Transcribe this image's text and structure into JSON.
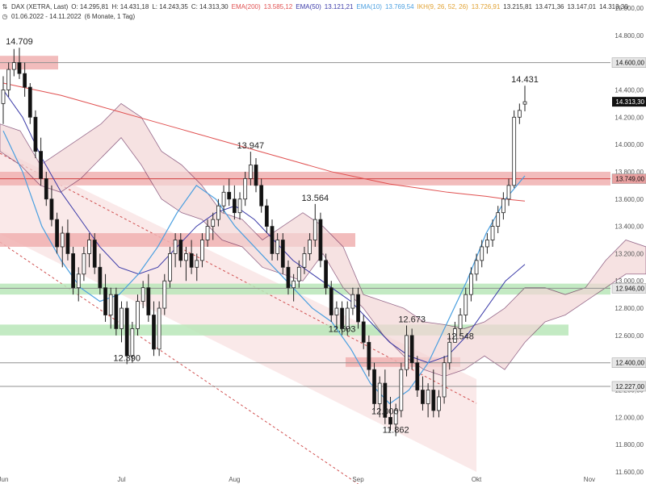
{
  "header": {
    "symbol_icon": "chart-icon",
    "symbol": "DAX (XETRA, Last)",
    "ohlc": {
      "open": "O: 14.295,81",
      "high": "H: 14.431,18",
      "low": "L: 14.243,35",
      "close": "C: 14.313,30"
    },
    "indicators": [
      {
        "name": "EMA(200)",
        "value": "13.585,12",
        "color": "#e05050"
      },
      {
        "name": "EMA(50)",
        "value": "13.121,21",
        "color": "#3a3aa8"
      },
      {
        "name": "EMA(10)",
        "value": "13.769,54",
        "color": "#4a9fe0"
      },
      {
        "name": "IKH(9, 26, 52, 26)",
        "value": "13.726,91",
        "color": "#e0a030"
      }
    ],
    "ikh_extra": [
      "13.215,81",
      "13.471,36",
      "13.147,01",
      "14.313,30"
    ],
    "clock_icon": "clock-icon",
    "range": "01.06.2022 - 14.11.2022",
    "range_note": "(6 Monate, 1 Tag)"
  },
  "chart_data": {
    "type": "candlestick",
    "ylim": [
      11600,
      15000
    ],
    "y_ticks": [
      "15.000,00",
      "14.800,00",
      "14.600,00",
      "14.400,00",
      "14.200,00",
      "14.000,00",
      "13.800,00",
      "13.600,00",
      "13.400,00",
      "13.200,00",
      "13.000,00",
      "12.800,00",
      "12.600,00",
      "12.400,00",
      "12.200,00",
      "12.000,00",
      "11.800,00",
      "11.600,00"
    ],
    "x_ticks": [
      {
        "label": "Jun",
        "index": 0
      },
      {
        "label": "Jul",
        "index": 22
      },
      {
        "label": "Aug",
        "index": 43
      },
      {
        "label": "Sep",
        "index": 66
      },
      {
        "label": "Okt",
        "index": 88
      },
      {
        "label": "Nov",
        "index": 109
      }
    ],
    "candles": [
      [
        14300,
        14500,
        14150,
        14400
      ],
      [
        14400,
        14600,
        14350,
        14550
      ],
      [
        14550,
        14700,
        14500,
        14600
      ],
      [
        14600,
        14709,
        14480,
        14520
      ],
      [
        14520,
        14600,
        14350,
        14420
      ],
      [
        14420,
        14450,
        14150,
        14200
      ],
      [
        14200,
        14250,
        13900,
        13950
      ],
      [
        13950,
        14050,
        13700,
        13750
      ],
      [
        13750,
        13800,
        13550,
        13600
      ],
      [
        13600,
        13700,
        13400,
        13450
      ],
      [
        13450,
        13500,
        13200,
        13250
      ],
      [
        13250,
        13400,
        13100,
        13350
      ],
      [
        13350,
        13450,
        13150,
        13200
      ],
      [
        13200,
        13250,
        12900,
        12950
      ],
      [
        12950,
        13100,
        12850,
        13050
      ],
      [
        13050,
        13250,
        13000,
        13200
      ],
      [
        13200,
        13350,
        13100,
        13300
      ],
      [
        13300,
        13350,
        13050,
        13100
      ],
      [
        13100,
        13200,
        12900,
        12950
      ],
      [
        12950,
        13050,
        12700,
        12750
      ],
      [
        12750,
        12950,
        12650,
        12900
      ],
      [
        12900,
        12950,
        12600,
        12650
      ],
      [
        12650,
        12850,
        12550,
        12800
      ],
      [
        12800,
        12850,
        12390,
        12450
      ],
      [
        12450,
        12700,
        12400,
        12650
      ],
      [
        12650,
        12900,
        12600,
        12850
      ],
      [
        12850,
        13000,
        12800,
        12950
      ],
      [
        12950,
        13050,
        12700,
        12750
      ],
      [
        12750,
        12850,
        12450,
        12500
      ],
      [
        12500,
        12850,
        12450,
        12800
      ],
      [
        12800,
        13050,
        12750,
        13000
      ],
      [
        13000,
        13250,
        12950,
        13200
      ],
      [
        13200,
        13350,
        13100,
        13300
      ],
      [
        13300,
        13350,
        13100,
        13150
      ],
      [
        13150,
        13250,
        13000,
        13200
      ],
      [
        13200,
        13300,
        13050,
        13100
      ],
      [
        13100,
        13200,
        13000,
        13150
      ],
      [
        13150,
        13350,
        13100,
        13300
      ],
      [
        13300,
        13450,
        13250,
        13400
      ],
      [
        13400,
        13500,
        13300,
        13450
      ],
      [
        13450,
        13600,
        13400,
        13550
      ],
      [
        13550,
        13700,
        13500,
        13650
      ],
      [
        13650,
        13750,
        13550,
        13600
      ],
      [
        13600,
        13700,
        13450,
        13500
      ],
      [
        13500,
        13650,
        13450,
        13600
      ],
      [
        13600,
        13800,
        13550,
        13750
      ],
      [
        13750,
        13947,
        13700,
        13850
      ],
      [
        13850,
        13900,
        13650,
        13700
      ],
      [
        13700,
        13750,
        13500,
        13550
      ],
      [
        13550,
        13600,
        13350,
        13400
      ],
      [
        13400,
        13450,
        13150,
        13200
      ],
      [
        13200,
        13350,
        13150,
        13300
      ],
      [
        13300,
        13350,
        13050,
        13100
      ],
      [
        13100,
        13150,
        12900,
        12950
      ],
      [
        12950,
        13050,
        12850,
        13000
      ],
      [
        13000,
        13150,
        12950,
        13100
      ],
      [
        13100,
        13250,
        13050,
        13200
      ],
      [
        13200,
        13350,
        13150,
        13300
      ],
      [
        13300,
        13564,
        13250,
        13450
      ],
      [
        13450,
        13500,
        13100,
        13150
      ],
      [
        13150,
        13200,
        12900,
        12950
      ],
      [
        12950,
        13000,
        12700,
        12750
      ],
      [
        12750,
        12850,
        12650,
        12800
      ],
      [
        12800,
        12850,
        12603,
        12650
      ],
      [
        12650,
        12850,
        12600,
        12800
      ],
      [
        12800,
        12950,
        12750,
        12900
      ],
      [
        12900,
        12950,
        12650,
        12700
      ],
      [
        12700,
        12750,
        12500,
        12550
      ],
      [
        12550,
        12600,
        12300,
        12350
      ],
      [
        12350,
        12400,
        12050,
        12100
      ],
      [
        12100,
        12300,
        12000,
        12250
      ],
      [
        12250,
        12350,
        11950,
        12000
      ],
      [
        12000,
        12150,
        11900,
        11950
      ],
      [
        11950,
        12100,
        11862,
        12050
      ],
      [
        12050,
        12400,
        12000,
        12350
      ],
      [
        12350,
        12673,
        12300,
        12600
      ],
      [
        12600,
        12650,
        12350,
        12400
      ],
      [
        12400,
        12450,
        12150,
        12200
      ],
      [
        12200,
        12300,
        12050,
        12100
      ],
      [
        12100,
        12250,
        12000,
        12200
      ],
      [
        12200,
        12350,
        12000,
        12050
      ],
      [
        12050,
        12200,
        12000,
        12150
      ],
      [
        12150,
        12450,
        12100,
        12400
      ],
      [
        12400,
        12600,
        12350,
        12550
      ],
      [
        12550,
        12700,
        12548,
        12650
      ],
      [
        12650,
        12800,
        12600,
        12750
      ],
      [
        12750,
        12950,
        12700,
        12900
      ],
      [
        12900,
        13100,
        12850,
        13050
      ],
      [
        13050,
        13200,
        13000,
        13150
      ],
      [
        13150,
        13300,
        13100,
        13250
      ],
      [
        13250,
        13350,
        13200,
        13300
      ],
      [
        13300,
        13450,
        13250,
        13400
      ],
      [
        13400,
        13550,
        13350,
        13500
      ],
      [
        13500,
        13650,
        13450,
        13600
      ],
      [
        13600,
        13750,
        13550,
        13700
      ],
      [
        13700,
        14250,
        13680,
        14200
      ],
      [
        14200,
        14300,
        14150,
        14250
      ],
      [
        14295.81,
        14431.18,
        14243.35,
        14313.3
      ]
    ],
    "overlays": {
      "ema200": [
        14450,
        14420,
        14390,
        14360,
        14320,
        14280,
        14240,
        14200,
        14160,
        14120,
        14080,
        14040,
        14000,
        13960,
        13920,
        13880,
        13840,
        13800,
        13770,
        13740,
        13710,
        13690,
        13670,
        13650,
        13635,
        13620,
        13600,
        13585
      ],
      "ema50": [
        14400,
        14200,
        13900,
        13650,
        13450,
        13250,
        13100,
        13050,
        13100,
        13250,
        13400,
        13500,
        13550,
        13450,
        13300,
        13150,
        13050,
        12950,
        12850,
        12700,
        12550,
        12450,
        12400,
        12450,
        12600,
        12800,
        13000,
        13121
      ],
      "ema10": [
        14100,
        13800,
        13400,
        13150,
        12950,
        12850,
        12900,
        13050,
        13250,
        13500,
        13700,
        13600,
        13400,
        13250,
        13100,
        12950,
        12800,
        12700,
        12500,
        12250,
        12100,
        12200,
        12400,
        12700,
        13000,
        13350,
        13600,
        13770
      ]
    },
    "levels": [
      {
        "label": "14.600,00",
        "value": 14600,
        "style": "gray"
      },
      {
        "label": "13.749,00",
        "value": 13749,
        "style": "red"
      },
      {
        "label": "12.946,00",
        "value": 12946,
        "style": "gray"
      },
      {
        "label": "12.400,00",
        "value": 12400,
        "style": "gray"
      },
      {
        "label": "12.227,00",
        "value": 12227,
        "style": "gray"
      }
    ],
    "zones": [
      {
        "kind": "resistance",
        "from": 14550,
        "to": 14650
      },
      {
        "kind": "resistance",
        "from": 13700,
        "to": 13800
      },
      {
        "kind": "resistance",
        "from": 13250,
        "to": 13350
      },
      {
        "kind": "support",
        "from": 12900,
        "to": 12980
      },
      {
        "kind": "support",
        "from": 12600,
        "to": 12680
      },
      {
        "kind": "resistance",
        "from": 12370,
        "to": 12440
      }
    ],
    "current_price_label": "14.313,30",
    "annotations": [
      {
        "text": "14.709",
        "value": 14709,
        "index": 3
      },
      {
        "text": "13.947",
        "value": 13947,
        "index": 46
      },
      {
        "text": "13.564",
        "value": 13564,
        "index": 58
      },
      {
        "text": "12.603",
        "value": 12603,
        "index": 63
      },
      {
        "text": "12.673",
        "value": 12673,
        "index": 76
      },
      {
        "text": "12.390",
        "value": 12390,
        "index": 23
      },
      {
        "text": "12.548",
        "value": 12548,
        "index": 85
      },
      {
        "text": "12.000",
        "value": 12000,
        "index": 71
      },
      {
        "text": "11.862",
        "value": 11862,
        "index": 73
      },
      {
        "text": "14.431",
        "value": 14431,
        "index": 97
      }
    ]
  }
}
